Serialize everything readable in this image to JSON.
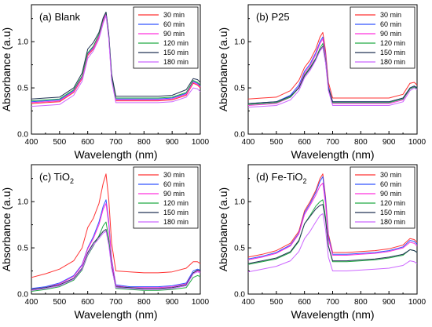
{
  "colors": [
    "#ff3333",
    "#3355ff",
    "#ff33dd",
    "#22aa44",
    "#223355",
    "#cc66ff"
  ],
  "chart_data": [
    {
      "type": "line",
      "label": "(a) Blank",
      "label_main": "(a) Blank",
      "label_sub": "",
      "label_suffix": "",
      "xlabel": "Wavelength (nm)",
      "ylabel": "Absorbance (a.u)",
      "xlim": [
        400,
        1000
      ],
      "ylim": [
        0,
        1.4
      ],
      "xticks": [
        "400",
        "500",
        "600",
        "700",
        "800",
        "900",
        "1000"
      ],
      "yticks": [
        "0.0",
        "0.5",
        "1.0"
      ],
      "x": [
        400,
        450,
        500,
        550,
        580,
        600,
        620,
        640,
        655,
        665,
        675,
        685,
        700,
        750,
        800,
        850,
        900,
        950,
        975,
        990,
        1000
      ],
      "series": [
        {
          "name": "30 min",
          "values": [
            0.33,
            0.34,
            0.35,
            0.45,
            0.6,
            0.85,
            0.92,
            1.05,
            1.22,
            1.3,
            1.05,
            0.6,
            0.36,
            0.36,
            0.36,
            0.36,
            0.37,
            0.42,
            0.55,
            0.53,
            0.5
          ]
        },
        {
          "name": "60 min",
          "values": [
            0.35,
            0.36,
            0.37,
            0.47,
            0.62,
            0.87,
            0.94,
            1.07,
            1.24,
            1.31,
            1.06,
            0.62,
            0.38,
            0.38,
            0.38,
            0.38,
            0.39,
            0.44,
            0.57,
            0.55,
            0.52
          ]
        },
        {
          "name": "90 min",
          "values": [
            0.34,
            0.35,
            0.36,
            0.46,
            0.61,
            0.86,
            0.93,
            1.06,
            1.23,
            1.3,
            1.05,
            0.61,
            0.37,
            0.37,
            0.37,
            0.37,
            0.38,
            0.43,
            0.56,
            0.54,
            0.51
          ]
        },
        {
          "name": "120 min",
          "values": [
            0.36,
            0.37,
            0.38,
            0.48,
            0.63,
            0.88,
            0.95,
            1.08,
            1.25,
            1.32,
            1.07,
            0.63,
            0.39,
            0.39,
            0.39,
            0.39,
            0.4,
            0.45,
            0.58,
            0.56,
            0.53
          ]
        },
        {
          "name": "150 min",
          "values": [
            0.38,
            0.39,
            0.4,
            0.5,
            0.66,
            0.92,
            0.99,
            1.1,
            1.26,
            1.32,
            1.08,
            0.65,
            0.41,
            0.41,
            0.41,
            0.41,
            0.42,
            0.48,
            0.6,
            0.59,
            0.56
          ]
        },
        {
          "name": "180 min",
          "values": [
            0.3,
            0.31,
            0.32,
            0.42,
            0.57,
            0.82,
            0.9,
            1.03,
            1.2,
            1.28,
            1.03,
            0.58,
            0.34,
            0.34,
            0.34,
            0.34,
            0.35,
            0.4,
            0.5,
            0.49,
            0.46
          ]
        }
      ]
    },
    {
      "type": "line",
      "label": "(b) P25",
      "label_main": "(b) P25",
      "label_sub": "",
      "label_suffix": "",
      "xlabel": "Wavelength (nm)",
      "ylabel": "Absorbance (a.u)",
      "xlim": [
        400,
        1000
      ],
      "ylim": [
        0,
        1.4
      ],
      "xticks": [
        "400",
        "500",
        "600",
        "700",
        "800",
        "900",
        "1000"
      ],
      "yticks": [
        "0.0",
        "0.5",
        "1.0"
      ],
      "x": [
        400,
        450,
        500,
        550,
        580,
        600,
        620,
        640,
        655,
        665,
        675,
        685,
        700,
        750,
        800,
        850,
        900,
        950,
        975,
        990,
        1000
      ],
      "series": [
        {
          "name": "30 min",
          "values": [
            0.38,
            0.39,
            0.4,
            0.47,
            0.58,
            0.72,
            0.8,
            0.92,
            1.05,
            1.1,
            0.9,
            0.56,
            0.39,
            0.39,
            0.39,
            0.39,
            0.39,
            0.43,
            0.55,
            0.56,
            0.53
          ]
        },
        {
          "name": "60 min",
          "values": [
            0.33,
            0.34,
            0.35,
            0.42,
            0.53,
            0.68,
            0.76,
            0.88,
            1.0,
            1.05,
            0.86,
            0.52,
            0.35,
            0.35,
            0.35,
            0.35,
            0.35,
            0.39,
            0.5,
            0.52,
            0.5
          ]
        },
        {
          "name": "90 min",
          "values": [
            0.31,
            0.32,
            0.33,
            0.4,
            0.51,
            0.66,
            0.74,
            0.86,
            0.98,
            1.03,
            0.84,
            0.5,
            0.33,
            0.33,
            0.33,
            0.33,
            0.33,
            0.37,
            0.49,
            0.51,
            0.49
          ]
        },
        {
          "name": "120 min",
          "values": [
            0.32,
            0.33,
            0.34,
            0.4,
            0.5,
            0.64,
            0.72,
            0.82,
            0.93,
            0.98,
            0.8,
            0.5,
            0.34,
            0.34,
            0.34,
            0.34,
            0.34,
            0.38,
            0.49,
            0.51,
            0.49
          ]
        },
        {
          "name": "150 min",
          "values": [
            0.33,
            0.34,
            0.35,
            0.41,
            0.5,
            0.63,
            0.71,
            0.81,
            0.91,
            0.95,
            0.78,
            0.5,
            0.35,
            0.35,
            0.35,
            0.35,
            0.35,
            0.39,
            0.5,
            0.52,
            0.5
          ]
        },
        {
          "name": "180 min",
          "values": [
            0.29,
            0.3,
            0.31,
            0.37,
            0.47,
            0.61,
            0.69,
            0.8,
            0.9,
            0.94,
            0.77,
            0.47,
            0.31,
            0.31,
            0.31,
            0.31,
            0.31,
            0.35,
            0.47,
            0.5,
            0.48
          ]
        }
      ]
    },
    {
      "type": "line",
      "label": "(c) TiO2",
      "label_main": "(c) TiO",
      "label_sub": "2",
      "label_suffix": "",
      "xlabel": "Wavelength (nm)",
      "ylabel": "Absorbance (a.u)",
      "xlim": [
        400,
        1000
      ],
      "ylim": [
        0,
        1.4
      ],
      "xticks": [
        "400",
        "500",
        "600",
        "700",
        "800",
        "900",
        "1000"
      ],
      "yticks": [
        "0.0",
        "0.5",
        "1.0"
      ],
      "x": [
        400,
        450,
        500,
        550,
        580,
        600,
        620,
        640,
        655,
        665,
        675,
        685,
        700,
        750,
        800,
        850,
        900,
        950,
        975,
        990,
        1000
      ],
      "series": [
        {
          "name": "30 min",
          "values": [
            0.18,
            0.22,
            0.27,
            0.36,
            0.5,
            0.72,
            0.82,
            0.98,
            1.2,
            1.3,
            1.02,
            0.55,
            0.25,
            0.24,
            0.23,
            0.23,
            0.24,
            0.28,
            0.35,
            0.35,
            0.33
          ]
        },
        {
          "name": "60 min",
          "values": [
            0.06,
            0.08,
            0.12,
            0.2,
            0.32,
            0.5,
            0.62,
            0.78,
            0.95,
            1.02,
            0.78,
            0.38,
            0.1,
            0.08,
            0.08,
            0.08,
            0.09,
            0.12,
            0.25,
            0.27,
            0.26
          ]
        },
        {
          "name": "90 min",
          "values": [
            0.05,
            0.07,
            0.11,
            0.19,
            0.31,
            0.49,
            0.6,
            0.75,
            0.92,
            0.98,
            0.75,
            0.36,
            0.09,
            0.07,
            0.07,
            0.07,
            0.08,
            0.11,
            0.23,
            0.25,
            0.24
          ]
        },
        {
          "name": "120 min",
          "values": [
            0.03,
            0.05,
            0.08,
            0.15,
            0.26,
            0.42,
            0.52,
            0.63,
            0.74,
            0.78,
            0.6,
            0.3,
            0.06,
            0.05,
            0.04,
            0.04,
            0.05,
            0.07,
            0.18,
            0.2,
            0.19
          ]
        },
        {
          "name": "150 min",
          "values": [
            0.05,
            0.07,
            0.1,
            0.17,
            0.28,
            0.45,
            0.55,
            0.62,
            0.68,
            0.7,
            0.55,
            0.3,
            0.08,
            0.07,
            0.06,
            0.06,
            0.07,
            0.1,
            0.23,
            0.26,
            0.25
          ]
        },
        {
          "name": "180 min",
          "values": [
            0.04,
            0.06,
            0.09,
            0.16,
            0.27,
            0.43,
            0.53,
            0.6,
            0.66,
            0.68,
            0.53,
            0.28,
            0.07,
            0.06,
            0.05,
            0.05,
            0.06,
            0.09,
            0.22,
            0.24,
            0.23
          ]
        }
      ]
    },
    {
      "type": "line",
      "label": "(d) Fe-TiO2",
      "label_main": "(d) Fe-TiO",
      "label_sub": "2",
      "label_suffix": "",
      "xlabel": "Wavelength (nm)",
      "ylabel": "Absorbance (a.u)",
      "xlim": [
        400,
        1000
      ],
      "ylim": [
        0,
        1.4
      ],
      "xticks": [
        "400",
        "500",
        "600",
        "700",
        "800",
        "900",
        "1000"
      ],
      "yticks": [
        "0.0",
        "0.5",
        "1.0"
      ],
      "x": [
        400,
        450,
        500,
        550,
        580,
        600,
        620,
        640,
        655,
        665,
        675,
        685,
        700,
        750,
        800,
        850,
        900,
        950,
        975,
        990,
        1000
      ],
      "series": [
        {
          "name": "30 min",
          "values": [
            0.4,
            0.43,
            0.47,
            0.55,
            0.68,
            0.9,
            1.0,
            1.12,
            1.25,
            1.3,
            1.05,
            0.65,
            0.45,
            0.45,
            0.46,
            0.47,
            0.49,
            0.53,
            0.6,
            0.59,
            0.56
          ]
        },
        {
          "name": "60 min",
          "values": [
            0.38,
            0.41,
            0.45,
            0.53,
            0.66,
            0.88,
            0.98,
            1.1,
            1.22,
            1.27,
            1.02,
            0.63,
            0.43,
            0.43,
            0.44,
            0.45,
            0.47,
            0.51,
            0.58,
            0.57,
            0.54
          ]
        },
        {
          "name": "90 min",
          "values": [
            0.37,
            0.4,
            0.44,
            0.52,
            0.65,
            0.86,
            0.96,
            1.07,
            1.17,
            1.2,
            0.97,
            0.6,
            0.42,
            0.42,
            0.43,
            0.44,
            0.46,
            0.5,
            0.56,
            0.55,
            0.52
          ]
        },
        {
          "name": "120 min",
          "values": [
            0.32,
            0.35,
            0.38,
            0.45,
            0.57,
            0.76,
            0.85,
            0.95,
            1.0,
            1.02,
            0.83,
            0.52,
            0.35,
            0.35,
            0.36,
            0.37,
            0.39,
            0.42,
            0.48,
            0.47,
            0.45
          ]
        },
        {
          "name": "150 min",
          "values": [
            0.33,
            0.36,
            0.39,
            0.46,
            0.58,
            0.76,
            0.84,
            0.92,
            0.96,
            0.97,
            0.8,
            0.52,
            0.36,
            0.36,
            0.37,
            0.38,
            0.4,
            0.43,
            0.48,
            0.47,
            0.45
          ]
        },
        {
          "name": "180 min",
          "values": [
            0.24,
            0.27,
            0.3,
            0.36,
            0.46,
            0.6,
            0.68,
            0.78,
            0.85,
            0.87,
            0.7,
            0.4,
            0.25,
            0.25,
            0.26,
            0.27,
            0.28,
            0.31,
            0.36,
            0.35,
            0.33
          ]
        }
      ]
    }
  ]
}
